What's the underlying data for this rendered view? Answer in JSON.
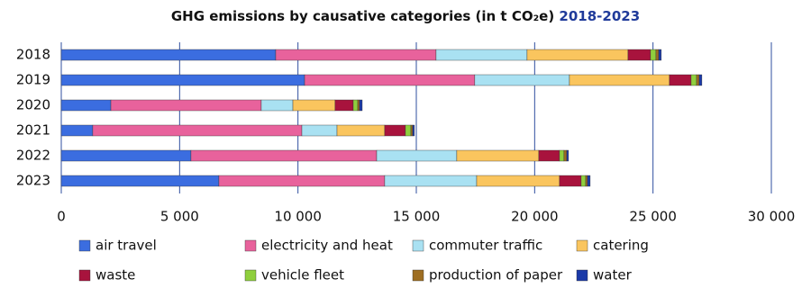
{
  "chart_data": {
    "type": "stacked-bar-horizontal",
    "title": "GHG emissions by causative categories (in t CO₂e)",
    "subtitle": "2018-2023",
    "categories": [
      "2018",
      "2019",
      "2020",
      "2021",
      "2022",
      "2023"
    ],
    "series": [
      {
        "name": "air travel",
        "color": "#3b6de0",
        "values": [
          9060,
          10280,
          2095,
          1330,
          5480,
          6660
        ]
      },
      {
        "name": "electricity and heat",
        "color": "#e8629c",
        "values": [
          6775,
          7190,
          6355,
          8835,
          7845,
          7005
        ]
      },
      {
        "name": "commuter traffic",
        "color": "#a9e1f2",
        "values": [
          3845,
          4000,
          1335,
          1485,
          3385,
          3885
        ]
      },
      {
        "name": "catering",
        "color": "#fac55e",
        "values": [
          4265,
          4225,
          1785,
          2015,
          3465,
          3500
        ]
      },
      {
        "name": "waste",
        "color": "#a8133d",
        "values": [
          950,
          915,
          765,
          875,
          875,
          915
        ]
      },
      {
        "name": "vehicle fleet",
        "color": "#8fcf3d",
        "values": [
          230,
          230,
          190,
          230,
          190,
          190
        ]
      },
      {
        "name": "production of paper",
        "color": "#9e6e22",
        "values": [
          115,
          110,
          75,
          75,
          115,
          75
        ]
      },
      {
        "name": "water",
        "color": "#1b3aa8",
        "values": [
          110,
          115,
          115,
          75,
          75,
          115
        ]
      }
    ],
    "xlim": [
      0,
      30000
    ],
    "xticks": [
      0,
      {
        "value": 5000,
        "label": "5 000"
      },
      {
        "value": 10000,
        "label": "10 000"
      },
      {
        "value": 15000,
        "label": "15 000"
      },
      {
        "value": 20000,
        "label": "20 000"
      },
      {
        "value": 25000,
        "label": "25 000"
      },
      {
        "value": 30000,
        "label": "30 000"
      }
    ],
    "grid": true
  }
}
